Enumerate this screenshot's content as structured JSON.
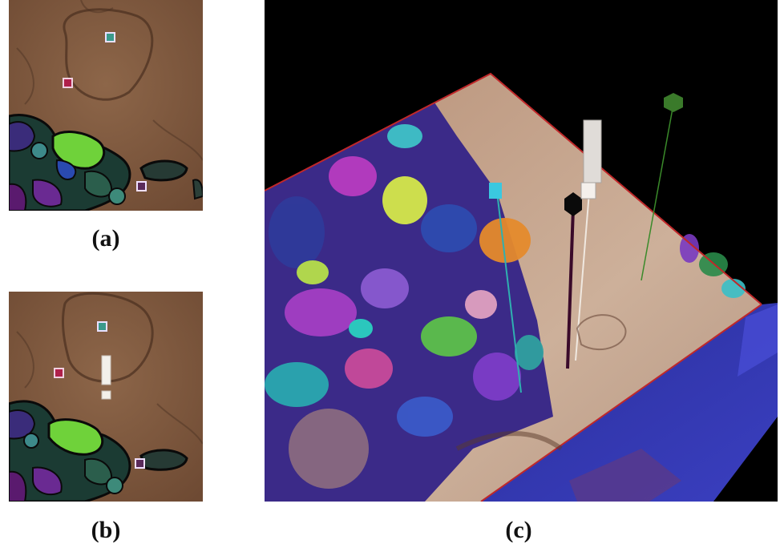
{
  "captions": {
    "a": "(a)",
    "b": "(b)",
    "c": "(c)"
  },
  "colors": {
    "tissue": "#7a5238",
    "tissue_light": "#8b6348",
    "background": "#000000",
    "cube_edge": "#c0282a",
    "cube_top": "#c9a88f"
  },
  "panels": [
    {
      "id": "panel-a",
      "description_icon": "em-slice-icon"
    },
    {
      "id": "panel-b",
      "description_icon": "em-slice-icon"
    },
    {
      "id": "panel-c",
      "description_icon": "em-volume-cube-icon"
    }
  ]
}
